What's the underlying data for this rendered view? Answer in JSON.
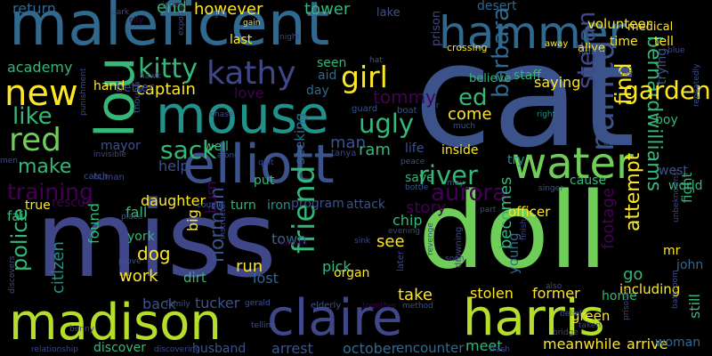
{
  "palette": {
    "background": "#000000",
    "purple": "#440154",
    "indigo": "#3b528b",
    "slate": "#404788",
    "blue": "#31688e",
    "teal": "#21918c",
    "sea": "#1f9e89",
    "green": "#35b779",
    "lime": "#6ece58",
    "yellow": "#b5de2b",
    "bright": "#fde725"
  },
  "words": [
    {
      "id": "cat",
      "text": "cat",
      "color": "#3b528b"
    },
    {
      "id": "miss",
      "text": "miss",
      "color": "#404788"
    },
    {
      "id": "doll",
      "text": "doll",
      "color": "#6ece58"
    },
    {
      "id": "maleficent",
      "text": "maleficent",
      "color": "#31688e"
    },
    {
      "id": "mouse",
      "text": "mouse",
      "color": "#21918c"
    },
    {
      "id": "elliott",
      "text": "elliott",
      "color": "#3b528b"
    },
    {
      "id": "madison",
      "text": "madison",
      "color": "#b5de2b"
    },
    {
      "id": "claire",
      "text": "claire",
      "color": "#404788"
    },
    {
      "id": "harris",
      "text": "harris",
      "color": "#b5de2b"
    },
    {
      "id": "hammer",
      "text": "hammer",
      "color": "#31688e"
    },
    {
      "id": "lou",
      "text": "lou",
      "color": "#35b779"
    },
    {
      "id": "water",
      "text": "water",
      "color": "#6ece58"
    },
    {
      "id": "new",
      "text": "new",
      "color": "#fde725"
    },
    {
      "id": "red",
      "text": "red",
      "color": "#6ece58"
    },
    {
      "id": "kathy",
      "text": "kathy",
      "color": "#404788"
    },
    {
      "id": "girl",
      "text": "girl",
      "color": "#fde725"
    },
    {
      "id": "named",
      "text": "named",
      "color": "#3b528b"
    },
    {
      "id": "friend",
      "text": "friend",
      "color": "#35b779"
    },
    {
      "id": "ugly",
      "text": "ugly",
      "color": "#35b779"
    },
    {
      "id": "barbara",
      "text": "barbara",
      "color": "#31688e"
    },
    {
      "id": "stefan",
      "text": "stefan",
      "color": "#404788"
    },
    {
      "id": "bernardwilliams",
      "text": "bernardwilliams",
      "color": "#35b779"
    },
    {
      "id": "garden",
      "text": "garden",
      "color": "#fde725"
    },
    {
      "id": "kitty",
      "text": "kitty",
      "color": "#35b779"
    },
    {
      "id": "like",
      "text": "like",
      "color": "#35b779"
    },
    {
      "id": "make",
      "text": "make",
      "color": "#35b779"
    },
    {
      "id": "training",
      "text": "training",
      "color": "#440154"
    },
    {
      "id": "sack",
      "text": "sack",
      "color": "#35b779"
    },
    {
      "id": "river",
      "text": "river",
      "color": "#35b779"
    },
    {
      "id": "aurora",
      "text": "aurora",
      "color": "#440154"
    },
    {
      "id": "find",
      "text": "find",
      "color": "#fde725"
    },
    {
      "id": "ed",
      "text": "ed",
      "color": "#35b779"
    },
    {
      "id": "norman",
      "text": "norman",
      "color": "#3b528b"
    },
    {
      "id": "police",
      "text": "police",
      "color": "#35b779"
    },
    {
      "id": "citizen",
      "text": "citizen",
      "color": "#21918c"
    },
    {
      "id": "captain",
      "text": "captain",
      "color": "#fde725"
    },
    {
      "id": "tommy",
      "text": "tommy",
      "color": "#440154"
    },
    {
      "id": "work",
      "text": "work",
      "color": "#fde725"
    },
    {
      "id": "dog",
      "text": "dog",
      "color": "#fde725"
    },
    {
      "id": "attempt",
      "text": "attempt",
      "color": "#fde725"
    },
    {
      "id": "footage",
      "text": "footage",
      "color": "#440154"
    },
    {
      "id": "becomes",
      "text": "becomes",
      "color": "#35b779"
    },
    {
      "id": "story",
      "text": "story",
      "color": "#440154"
    },
    {
      "id": "take",
      "text": "take",
      "color": "#fde725"
    },
    {
      "id": "stolen",
      "text": "stolen",
      "color": "#fde725"
    },
    {
      "id": "former",
      "text": "former",
      "color": "#fde725"
    },
    {
      "id": "meanwhile",
      "text": "meanwhile",
      "color": "#fde725"
    },
    {
      "id": "arrive",
      "text": "arrive",
      "color": "#fde725"
    },
    {
      "id": "officer",
      "text": "officer",
      "color": "#fde725"
    },
    {
      "id": "green",
      "text": "green",
      "color": "#fde725"
    },
    {
      "id": "including",
      "text": "including",
      "color": "#fde725"
    },
    {
      "id": "still",
      "text": "still",
      "color": "#35b779"
    },
    {
      "id": "young",
      "text": "young",
      "color": "#31688e"
    },
    {
      "id": "come",
      "text": "come",
      "color": "#fde725"
    },
    {
      "id": "ram",
      "text": "ram",
      "color": "#35b779"
    },
    {
      "id": "man",
      "text": "man",
      "color": "#3b528b"
    },
    {
      "id": "help",
      "text": "help",
      "color": "#3b528b"
    },
    {
      "id": "daughter",
      "text": "daughter",
      "color": "#fde725"
    },
    {
      "id": "fall",
      "text": "fall",
      "color": "#35b779"
    },
    {
      "id": "see",
      "text": "see",
      "color": "#fde725"
    },
    {
      "id": "town",
      "text": "town",
      "color": "#31688e"
    },
    {
      "id": "run",
      "text": "run",
      "color": "#fde725"
    },
    {
      "id": "pick",
      "text": "pick",
      "color": "#35b779"
    },
    {
      "id": "lost",
      "text": "lost",
      "color": "#31688e"
    },
    {
      "id": "arrest",
      "text": "arrest",
      "color": "#3b528b"
    },
    {
      "id": "october",
      "text": "october",
      "color": "#31688e"
    },
    {
      "id": "encounter",
      "text": "encounter",
      "color": "#31688e"
    },
    {
      "id": "meet",
      "text": "meet",
      "color": "#35b779"
    },
    {
      "id": "husband",
      "text": "husband",
      "color": "#3b528b"
    },
    {
      "id": "discover",
      "text": "discover",
      "color": "#35b779"
    },
    {
      "id": "tucker",
      "text": "tucker",
      "color": "#3b528b"
    },
    {
      "id": "back",
      "text": "back",
      "color": "#3b528b"
    },
    {
      "id": "burn",
      "text": "burn",
      "color": "#440154"
    },
    {
      "id": "big",
      "text": "big",
      "color": "#fde725"
    },
    {
      "id": "dirt",
      "text": "dirt",
      "color": "#35b779"
    },
    {
      "id": "fail",
      "text": "fail",
      "color": "#35b779"
    },
    {
      "id": "true",
      "text": "true",
      "color": "#fde725"
    },
    {
      "id": "rescue",
      "text": "rescue",
      "color": "#440154"
    },
    {
      "id": "york",
      "text": "york",
      "color": "#35b779"
    },
    {
      "id": "found",
      "text": "found",
      "color": "#35b779"
    },
    {
      "id": "return",
      "text": "return",
      "color": "#31688e"
    },
    {
      "id": "academy",
      "text": "academy",
      "color": "#35b779"
    },
    {
      "id": "hand",
      "text": "hand",
      "color": "#fde725"
    },
    {
      "id": "better",
      "text": "better",
      "color": "#404788"
    },
    {
      "id": "mayor",
      "text": "mayor",
      "color": "#3b528b"
    },
    {
      "id": "end",
      "text": "end",
      "color": "#35b779"
    },
    {
      "id": "however",
      "text": "however",
      "color": "#fde725"
    },
    {
      "id": "tower",
      "text": "tower",
      "color": "#35b779"
    },
    {
      "id": "last",
      "text": "last",
      "color": "#fde725"
    },
    {
      "id": "seen",
      "text": "seen",
      "color": "#35b779"
    },
    {
      "id": "aid",
      "text": "aid",
      "color": "#31688e"
    },
    {
      "id": "love",
      "text": "love",
      "color": "#440154"
    },
    {
      "id": "day",
      "text": "day",
      "color": "#31688e"
    },
    {
      "id": "well",
      "text": "well",
      "color": "#35b779"
    },
    {
      "id": "put",
      "text": "put",
      "color": "#35b779"
    },
    {
      "id": "seeking",
      "text": "seeking",
      "color": "#31688e"
    },
    {
      "id": "turn",
      "text": "turn",
      "color": "#35b779"
    },
    {
      "id": "iron",
      "text": "iron",
      "color": "#21918c"
    },
    {
      "id": "program",
      "text": "program",
      "color": "#3b528b"
    },
    {
      "id": "attack",
      "text": "attack",
      "color": "#3b528b"
    },
    {
      "id": "chip",
      "text": "chip",
      "color": "#35b779"
    },
    {
      "id": "organ",
      "text": "organ",
      "color": "#fde725"
    },
    {
      "id": "save",
      "text": "save",
      "color": "#35b779"
    },
    {
      "id": "life",
      "text": "life",
      "color": "#3b528b"
    },
    {
      "id": "inside",
      "text": "inside",
      "color": "#fde725"
    },
    {
      "id": "try",
      "text": "try",
      "color": "#21918c"
    },
    {
      "id": "cause",
      "text": "cause",
      "color": "#35b779"
    },
    {
      "id": "world",
      "text": "world",
      "color": "#35b779"
    },
    {
      "id": "west",
      "text": "west",
      "color": "#3b528b"
    },
    {
      "id": "go",
      "text": "go",
      "color": "#35b779"
    },
    {
      "id": "fight",
      "text": "fight",
      "color": "#35b779"
    },
    {
      "id": "mr",
      "text": "mr",
      "color": "#fde725"
    },
    {
      "id": "john",
      "text": "john",
      "color": "#31688e"
    },
    {
      "id": "boy",
      "text": "boy",
      "color": "#35b779"
    },
    {
      "id": "trying",
      "text": "trying",
      "color": "#3b528b"
    },
    {
      "id": "woman",
      "text": "woman",
      "color": "#31688e"
    },
    {
      "id": "home",
      "text": "home",
      "color": "#35b779"
    },
    {
      "id": "volunteer",
      "text": "volunteer",
      "color": "#fde725"
    },
    {
      "id": "desert",
      "text": "desert",
      "color": "#31688e"
    },
    {
      "id": "lake",
      "text": "lake",
      "color": "#3b528b"
    },
    {
      "id": "staff",
      "text": "staff",
      "color": "#35b779"
    },
    {
      "id": "time",
      "text": "time",
      "color": "#fde725"
    },
    {
      "id": "tell",
      "text": "tell",
      "color": "#fde725"
    },
    {
      "id": "medical",
      "text": "medical",
      "color": "#fde725"
    },
    {
      "id": "saying",
      "text": "saying",
      "color": "#fde725"
    },
    {
      "id": "believe",
      "text": "believe",
      "color": "#35b779"
    },
    {
      "id": "alive",
      "text": "alive",
      "color": "#fde725"
    },
    {
      "id": "prison",
      "text": "prison",
      "color": "#404788"
    },
    {
      "id": "crossing",
      "text": "crossing",
      "color": "#fde725"
    },
    {
      "id": "away",
      "text": "away",
      "color": "#fde725"
    },
    {
      "id": "hiding",
      "text": "hiding",
      "color": "#3b528b"
    },
    {
      "id": "blue",
      "text": "blue",
      "color": "#404788"
    },
    {
      "id": "gain",
      "text": "gain",
      "color": "#fde725"
    },
    {
      "id": "get",
      "text": "get",
      "color": "#3b528b"
    },
    {
      "id": "night",
      "text": "night",
      "color": "#404788"
    },
    {
      "id": "jones",
      "text": "jones",
      "color": "#404788"
    },
    {
      "id": "park",
      "text": "park",
      "color": "#404788"
    },
    {
      "id": "city",
      "text": "city",
      "color": "#440154"
    },
    {
      "id": "expose",
      "text": "expose",
      "color": "#404788"
    },
    {
      "id": "hawk",
      "text": "hawk",
      "color": "#404788"
    },
    {
      "id": "hat",
      "text": "hat",
      "color": "#3b528b"
    },
    {
      "id": "guard",
      "text": "guard",
      "color": "#3b528b"
    },
    {
      "id": "boat",
      "text": "boat",
      "color": "#3b528b"
    },
    {
      "id": "dr",
      "text": "dr",
      "color": "#3b528b"
    },
    {
      "id": "much",
      "text": "much",
      "color": "#3b528b"
    },
    {
      "id": "chase",
      "text": "chase",
      "color": "#404788"
    },
    {
      "id": "punishment",
      "text": "punishment",
      "color": "#404788"
    },
    {
      "id": "though",
      "text": "though",
      "color": "#3b528b"
    },
    {
      "id": "invisible",
      "text": "invisible",
      "color": "#404788"
    },
    {
      "id": "men",
      "text": "men",
      "color": "#404788"
    },
    {
      "id": "human",
      "text": "human",
      "color": "#404788"
    },
    {
      "id": "catch",
      "text": "catch",
      "color": "#3b528b"
    },
    {
      "id": "along",
      "text": "along",
      "color": "#3b528b"
    },
    {
      "id": "tanya",
      "text": "tanya",
      "color": "#404788"
    },
    {
      "id": "quit",
      "text": "quit",
      "color": "#404788"
    },
    {
      "id": "peace",
      "text": "peace",
      "color": "#3b528b"
    },
    {
      "id": "bottle",
      "text": "bottle",
      "color": "#3b528b"
    },
    {
      "id": "may",
      "text": "may",
      "color": "#3b528b"
    },
    {
      "id": "singer",
      "text": "singer",
      "color": "#3b528b"
    },
    {
      "id": "admits",
      "text": "admits",
      "color": "#3b528b"
    },
    {
      "id": "lose",
      "text": "lose",
      "color": "#404788"
    },
    {
      "id": "repeatedly",
      "text": "repeatedly",
      "color": "#3b528b"
    },
    {
      "id": "right",
      "text": "right",
      "color": "#21918c"
    },
    {
      "id": "unbeknownst",
      "text": "unbeknownst",
      "color": "#404788"
    },
    {
      "id": "part",
      "text": "part",
      "color": "#404788"
    },
    {
      "id": "instructor",
      "text": "instructor",
      "color": "#404788"
    },
    {
      "id": "couple",
      "text": "couple",
      "color": "#3b528b"
    },
    {
      "id": "place",
      "text": "place",
      "color": "#3b528b"
    },
    {
      "id": "prove",
      "text": "prove",
      "color": "#3b528b"
    },
    {
      "id": "discovers",
      "text": "discovers",
      "color": "#404788"
    },
    {
      "id": "thrown",
      "text": "thrown",
      "color": "#440154"
    },
    {
      "id": "sink",
      "text": "sink",
      "color": "#404788"
    },
    {
      "id": "evening",
      "text": "evening",
      "color": "#404788"
    },
    {
      "id": "revenge",
      "text": "revenge",
      "color": "#404788"
    },
    {
      "id": "soon",
      "text": "soon",
      "color": "#404788"
    },
    {
      "id": "drowning",
      "text": "drowning",
      "color": "#404788"
    },
    {
      "id": "finish",
      "text": "finish",
      "color": "#404788"
    },
    {
      "id": "later",
      "text": "later",
      "color": "#404788"
    },
    {
      "id": "elderly",
      "text": "elderly",
      "color": "#3b528b"
    },
    {
      "id": "together",
      "text": "together",
      "color": "#440154"
    },
    {
      "id": "method",
      "text": "method",
      "color": "#3b528b"
    },
    {
      "id": "family",
      "text": "family",
      "color": "#3b528b"
    },
    {
      "id": "gerald",
      "text": "gerald",
      "color": "#3b528b"
    },
    {
      "id": "benny",
      "text": "benny",
      "color": "#404788"
    },
    {
      "id": "relationship",
      "text": "relationship",
      "color": "#404788"
    },
    {
      "id": "discovering",
      "text": "discovering",
      "color": "#404788"
    },
    {
      "id": "telling",
      "text": "telling",
      "color": "#3b528b"
    },
    {
      "id": "also",
      "text": "also",
      "color": "#404788"
    },
    {
      "id": "belief",
      "text": "belief",
      "color": "#3b528b"
    },
    {
      "id": "taken",
      "text": "taken",
      "color": "#404788"
    },
    {
      "id": "bridge",
      "text": "bridge",
      "color": "#404788"
    },
    {
      "id": "prisoner",
      "text": "prisoner",
      "color": "#404788"
    },
    {
      "id": "bathroom",
      "text": "bathroom",
      "color": "#404788"
    },
    {
      "id": "trash",
      "text": "trash",
      "color": "#404788"
    }
  ]
}
